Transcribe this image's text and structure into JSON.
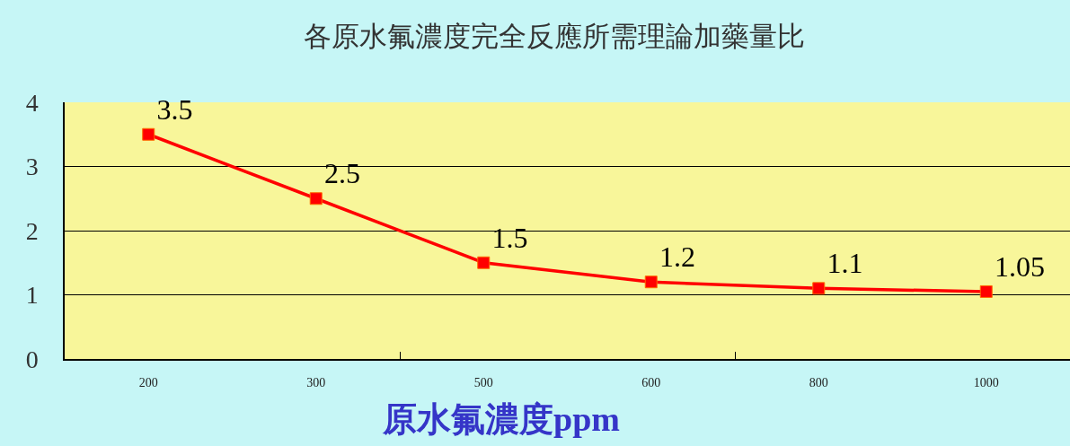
{
  "chart_data": {
    "type": "line",
    "title": "各原水氟濃度完全反應所需理論加藥量比",
    "xlabel": "原水氟濃度ppm",
    "categories": [
      "200",
      "300",
      "500",
      "600",
      "800",
      "1000"
    ],
    "series": [
      {
        "color": "#ff0000",
        "values": [
          3.5,
          2.5,
          1.5,
          1.2,
          1.1,
          1.05
        ]
      }
    ],
    "ylim": [
      0,
      4
    ],
    "yticks": [
      0,
      1,
      2,
      3,
      4
    ],
    "grid": "y",
    "marker": "square",
    "line_style": "solid",
    "data_labels": true
  }
}
